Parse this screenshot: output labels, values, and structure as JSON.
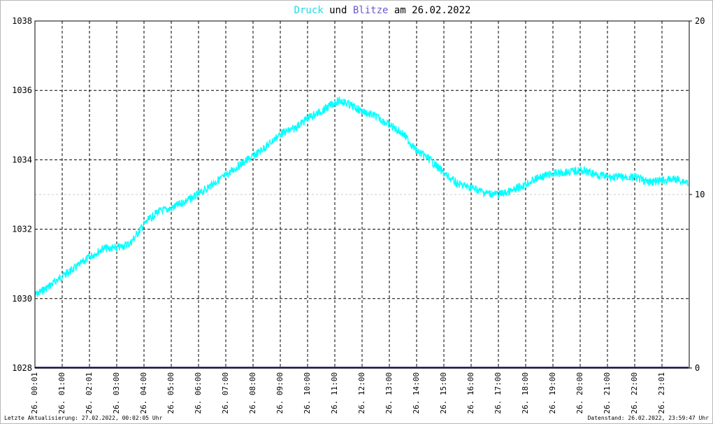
{
  "title": {
    "series1": "Druck",
    "connector": "und",
    "series2": "Blitze",
    "date_prefix": "am",
    "date": "26.02.2022"
  },
  "footer": {
    "last_update": "Letzte Aktualisierung: 27.02.2022, 00:02:05 Uhr",
    "data_status": "Datenstand: 26.02.2022, 23:59:47 Uhr"
  },
  "colors": {
    "pressure": "#00ffff",
    "lightning": "#1a1a6e",
    "title_druck": "#22d8e6",
    "title_blitze": "#6a5acd",
    "grid": "#000000",
    "halfline": "#cccccc"
  },
  "chart_data": {
    "type": "line",
    "title": "Druck und Blitze am 26.02.2022",
    "xlabel": "",
    "ylabel": "",
    "grid": true,
    "y_left": {
      "range": [
        1028,
        1038
      ],
      "ticks": [
        "1028",
        "1030",
        "1032",
        "1034",
        "1036",
        "1038"
      ]
    },
    "y_right": {
      "range": [
        0,
        20
      ],
      "ticks": [
        "0",
        "10",
        "20"
      ]
    },
    "x_range_hours": [
      0,
      24
    ],
    "x_ticks": [
      "26. 00:01",
      "26. 01:00",
      "26. 02:01",
      "26. 03:00",
      "26. 04:00",
      "26. 05:00",
      "26. 06:00",
      "26. 07:00",
      "26. 08:00",
      "26. 09:00",
      "26. 10:00",
      "26. 11:00",
      "26. 12:00",
      "26. 13:00",
      "26. 14:00",
      "26. 15:00",
      "26. 16:00",
      "26. 17:00",
      "26. 18:00",
      "26. 19:00",
      "26. 20:00",
      "26. 21:00",
      "26. 22:00",
      "26. 23:01"
    ],
    "series": [
      {
        "name": "Druck",
        "axis": "left",
        "x": [
          0,
          0.5,
          1.0,
          1.5,
          2.0,
          2.5,
          3.0,
          3.5,
          4.0,
          4.5,
          5.0,
          5.5,
          6.0,
          6.5,
          7.0,
          7.5,
          8.0,
          8.5,
          9.0,
          9.5,
          10.0,
          10.5,
          11.0,
          11.25,
          11.5,
          12.0,
          12.5,
          13.0,
          13.5,
          14.0,
          14.5,
          15.0,
          15.5,
          16.0,
          16.5,
          17.0,
          17.5,
          18.0,
          18.5,
          19.0,
          19.5,
          20.0,
          20.5,
          21.0,
          21.5,
          22.0,
          22.5,
          23.0,
          23.5,
          23.97
        ],
        "values": [
          1030.1,
          1030.35,
          1030.65,
          1030.9,
          1031.2,
          1031.45,
          1031.45,
          1031.6,
          1032.15,
          1032.5,
          1032.6,
          1032.8,
          1033.0,
          1033.3,
          1033.55,
          1033.85,
          1034.1,
          1034.4,
          1034.75,
          1034.9,
          1035.2,
          1035.4,
          1035.65,
          1035.7,
          1035.6,
          1035.4,
          1035.25,
          1035.0,
          1034.75,
          1034.25,
          1034.0,
          1033.6,
          1033.3,
          1033.2,
          1033.05,
          1033.0,
          1033.1,
          1033.3,
          1033.5,
          1033.6,
          1033.65,
          1033.7,
          1033.6,
          1033.5,
          1033.5,
          1033.5,
          1033.35,
          1033.4,
          1033.45,
          1033.35
        ]
      },
      {
        "name": "Blitze",
        "axis": "right",
        "x": [
          0,
          23.97
        ],
        "values": [
          0,
          0
        ]
      }
    ]
  }
}
